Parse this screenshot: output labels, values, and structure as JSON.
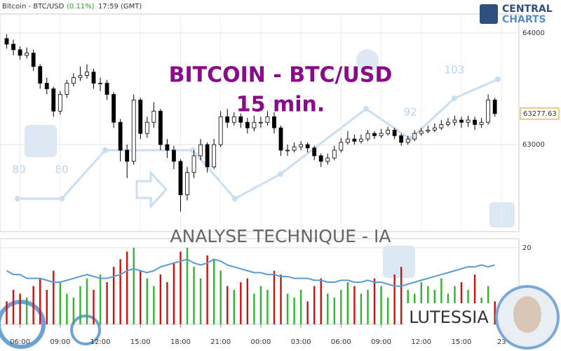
{
  "header": {
    "instrument": "Bitcoin - BTC/USD",
    "change": "(0.11%)",
    "time": "17:59 (GMT)",
    "logo_top": "CENTRAL",
    "logo_bottom": "CHARTS"
  },
  "overlay_text": {
    "title": "BITCOIN - BTC/USD",
    "timeframe": "15 min.",
    "banner": "ANALYSE TECHNIQUE - IA",
    "assistant": "LUTESSIA"
  },
  "watermark_labels": [
    "80",
    "80",
    "92",
    "103"
  ],
  "chart_data": [
    {
      "type": "candlestick",
      "xlim": [
        -1.5,
        37.3
      ],
      "ylim": [
        62220,
        64170
      ],
      "yticks": [
        63000,
        64000
      ],
      "last_price": 63277.63,
      "up_color": "#ffffff",
      "down_color": "#000000",
      "grid": true,
      "x": [
        -1,
        -0.5,
        0,
        0.5,
        1,
        1.5,
        2,
        2.5,
        3,
        3.5,
        4,
        4.5,
        5,
        5.5,
        6,
        6.5,
        7,
        7.5,
        8,
        8.5,
        9,
        9.5,
        10,
        10.5,
        11,
        11.5,
        12,
        12.5,
        13,
        13.5,
        14,
        14.5,
        15,
        15.5,
        16,
        16.5,
        17,
        17.5,
        18,
        18.5,
        19,
        19.5,
        20,
        20.5,
        21,
        21.5,
        22,
        22.5,
        23,
        23.5,
        24,
        24.5,
        25,
        25.5,
        26,
        26.5,
        27,
        27.5,
        28,
        28.5,
        29,
        29.5,
        30,
        30.5,
        31,
        31.5,
        32,
        32.5,
        33,
        33.5,
        34,
        34.5,
        35,
        35.5
      ],
      "open": [
        63950,
        63900,
        63850,
        63800,
        63820,
        63700,
        63550,
        63500,
        63300,
        63450,
        63550,
        63600,
        63620,
        63650,
        63550,
        63550,
        63450,
        63200,
        62950,
        62850,
        63400,
        63100,
        63200,
        63300,
        63000,
        62950,
        62850,
        62550,
        62750,
        62900,
        63000,
        62800,
        63000,
        63250,
        63200,
        63250,
        63200,
        63150,
        63200,
        63200,
        63250,
        63150,
        62950,
        62950,
        62980,
        63000,
        62970,
        62900,
        62850,
        62880,
        62950,
        63020,
        63050,
        63030,
        63050,
        63100,
        63080,
        63100,
        63130,
        63080,
        63020,
        63050,
        63100,
        63120,
        63130,
        63150,
        63180,
        63200,
        63220,
        63200,
        63220,
        63180,
        63200,
        63400
      ],
      "high": [
        63990,
        63940,
        63880,
        63870,
        63850,
        63720,
        63600,
        63520,
        63480,
        63580,
        63640,
        63700,
        63720,
        63680,
        63600,
        63580,
        63470,
        63230,
        63000,
        63450,
        63420,
        63250,
        63380,
        63320,
        63050,
        62990,
        62870,
        62800,
        62950,
        63050,
        63020,
        63050,
        63300,
        63320,
        63290,
        63280,
        63240,
        63260,
        63250,
        63300,
        63290,
        63170,
        63000,
        63020,
        63030,
        63020,
        62990,
        62920,
        62920,
        62990,
        63060,
        63120,
        63090,
        63090,
        63130,
        63120,
        63140,
        63160,
        63150,
        63100,
        63080,
        63130,
        63150,
        63170,
        63190,
        63220,
        63240,
        63260,
        63250,
        63260,
        63250,
        63240,
        63450,
        63420
      ],
      "low": [
        63860,
        63800,
        63760,
        63770,
        63660,
        63500,
        63450,
        63250,
        63270,
        63420,
        63520,
        63570,
        63590,
        63500,
        63480,
        63400,
        63150,
        62850,
        62700,
        62820,
        63050,
        63060,
        63150,
        62950,
        62880,
        62780,
        62400,
        62500,
        62700,
        62860,
        62750,
        62780,
        62980,
        63150,
        63170,
        63150,
        63100,
        63120,
        63150,
        63170,
        63100,
        62900,
        62900,
        62930,
        62950,
        62930,
        62860,
        62800,
        62820,
        62860,
        62930,
        63000,
        63000,
        63010,
        63030,
        63050,
        63060,
        63080,
        63050,
        62990,
        63000,
        63030,
        63080,
        63100,
        63110,
        63130,
        63160,
        63170,
        63150,
        63160,
        63130,
        63150,
        63180,
        63250
      ],
      "close": [
        63900,
        63850,
        63800,
        63820,
        63700,
        63550,
        63500,
        63300,
        63450,
        63550,
        63600,
        63620,
        63650,
        63550,
        63550,
        63450,
        63200,
        62950,
        62850,
        63400,
        63100,
        63200,
        63300,
        63000,
        62950,
        62850,
        62550,
        62750,
        62900,
        63000,
        62800,
        63000,
        63250,
        63200,
        63250,
        63200,
        63150,
        63200,
        63200,
        63250,
        63150,
        62950,
        62950,
        62980,
        63000,
        62970,
        62900,
        62850,
        62880,
        62950,
        63020,
        63050,
        63030,
        63050,
        63100,
        63080,
        63100,
        63130,
        63080,
        63020,
        63050,
        63100,
        63120,
        63130,
        63150,
        63180,
        63200,
        63220,
        63200,
        63220,
        63180,
        63200,
        63400,
        63277.63
      ]
    },
    {
      "type": "volume",
      "xlim": [
        -1.5,
        37.3
      ],
      "ylim": [
        0,
        22
      ],
      "yticks": [
        20
      ],
      "up_color": "#2fb52f",
      "down_color": "#cc1111",
      "xticks": [
        {
          "value": 0,
          "label": "06:00"
        },
        {
          "value": 3,
          "label": "09:00"
        },
        {
          "value": 6,
          "label": "12:00"
        },
        {
          "value": 9,
          "label": "15:00"
        },
        {
          "value": 12,
          "label": "18:00"
        },
        {
          "value": 15,
          "label": "21:00"
        },
        {
          "value": 18,
          "label": "00:00"
        },
        {
          "value": 21,
          "label": "03:00"
        },
        {
          "value": 24,
          "label": "06:00"
        },
        {
          "value": 27,
          "label": "09:00"
        },
        {
          "value": 30,
          "label": "12:00"
        },
        {
          "value": 33,
          "label": "15:00"
        },
        {
          "value": 36,
          "label": "23"
        }
      ],
      "series": [
        {
          "type": "bar",
          "values": [
            6,
            9,
            8,
            7,
            10,
            12,
            9,
            14,
            11,
            8,
            7,
            10,
            12,
            9,
            13,
            11,
            15,
            17,
            19,
            20,
            14,
            12,
            10,
            13,
            11,
            16,
            19,
            20,
            15,
            12,
            18,
            17,
            14,
            10,
            9,
            11,
            12,
            8,
            10,
            9,
            14,
            13,
            8,
            7,
            9,
            6,
            10,
            12,
            8,
            7,
            9,
            11,
            10,
            8,
            9,
            12,
            10,
            7,
            13,
            15,
            9,
            8,
            11,
            10,
            9,
            12,
            8,
            10,
            11,
            9,
            13,
            7,
            10,
            6
          ]
        },
        {
          "type": "line",
          "color": "#5b9bd5",
          "values": [
            14,
            13,
            13,
            12,
            12,
            12,
            11.5,
            11,
            11,
            11.5,
            12,
            12.5,
            13,
            12.5,
            12,
            12,
            12.5,
            13,
            14,
            14.5,
            14,
            13.5,
            14,
            15,
            15.5,
            16,
            16.5,
            17,
            16,
            15.5,
            16,
            17,
            16.5,
            15.5,
            15,
            14.5,
            14,
            13.5,
            13.5,
            13,
            13,
            12.5,
            12.5,
            12,
            12,
            12,
            11.5,
            11.5,
            11,
            11,
            11.5,
            11.5,
            11,
            11,
            11.5,
            11,
            11,
            10.5,
            10,
            10,
            10.5,
            11,
            11.5,
            12,
            12.5,
            13,
            13.5,
            14,
            14.5,
            15,
            15,
            15.5,
            15,
            15.5
          ]
        }
      ]
    }
  ]
}
